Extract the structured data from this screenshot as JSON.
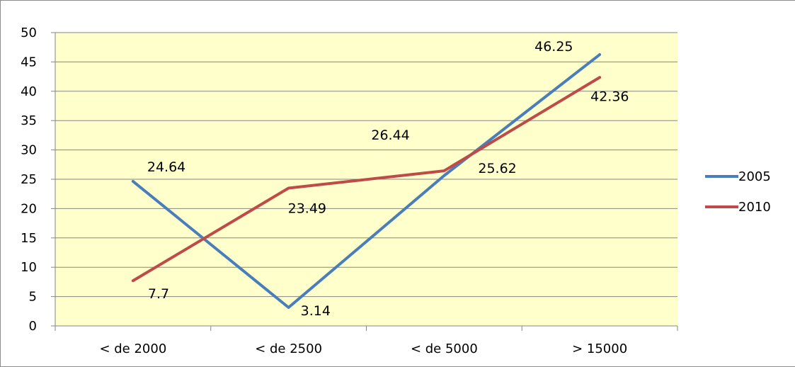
{
  "chart_data": {
    "type": "line",
    "categories": [
      "< de 2000",
      "< de 2500",
      "< de 5000",
      "> 15000"
    ],
    "series": [
      {
        "name": "2005",
        "values": [
          24.64,
          3.14,
          25.62,
          46.25
        ],
        "labels": [
          "24.64",
          "3.14",
          "25.62",
          "46.25"
        ],
        "color": "#4a7ebb"
      },
      {
        "name": "2010",
        "values": [
          7.7,
          23.49,
          26.44,
          42.36
        ],
        "labels": [
          "7.7",
          "23.49",
          "26.44",
          "42.36"
        ],
        "color": "#be4b48"
      }
    ],
    "ylim": [
      0,
      50
    ],
    "yticks": [
      0,
      5,
      10,
      15,
      20,
      25,
      30,
      35,
      40,
      45,
      50
    ],
    "ytick_labels": [
      "0",
      "5",
      "10",
      "15",
      "20",
      "25",
      "30",
      "35",
      "40",
      "45",
      "50"
    ],
    "grid": true,
    "legend_position": "right",
    "plot_background": "#ffffcc",
    "gridline_color": "#868686"
  }
}
